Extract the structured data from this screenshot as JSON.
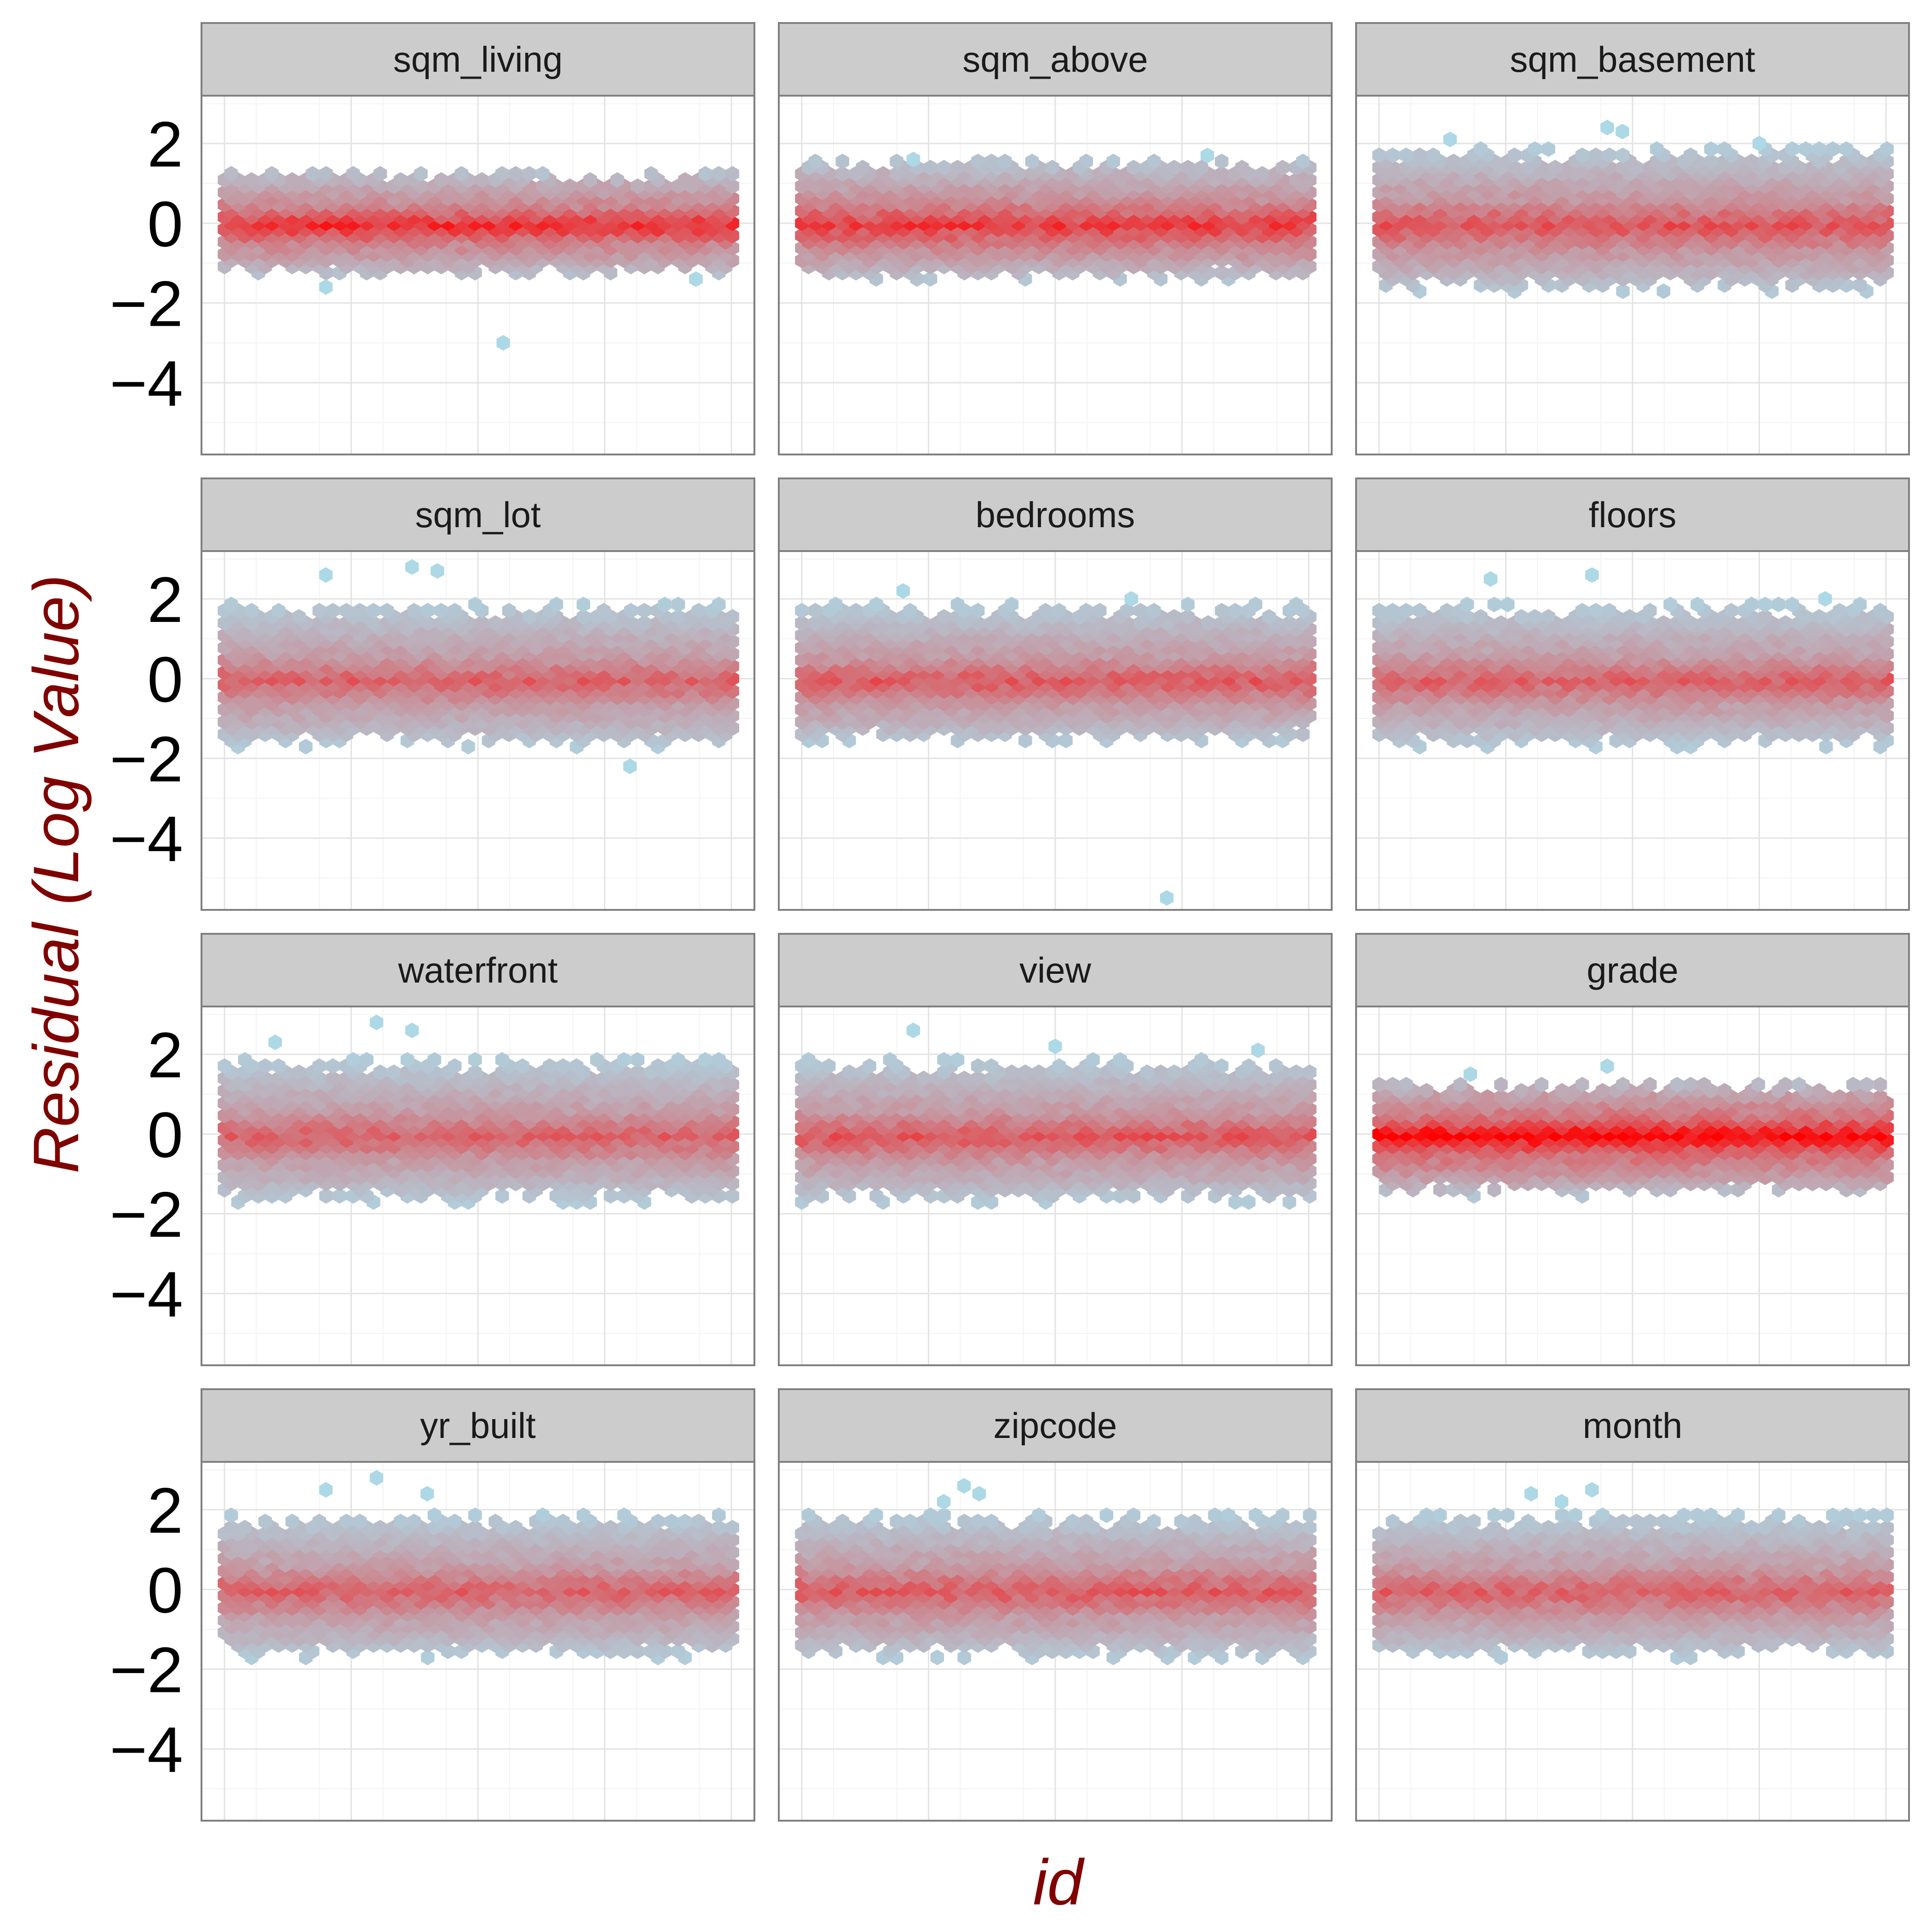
{
  "chart_data": {
    "type": "hexbin",
    "xlabel": "id",
    "ylabel": "Residual (Log Value)",
    "ylim": [
      -5.8,
      3.2
    ],
    "y_ticks": [
      2,
      0,
      -2,
      -4
    ],
    "y_tick_labels": [
      "2",
      "0",
      "−2",
      "−4"
    ],
    "x_tick_labels": [],
    "grid": true,
    "layout": "4 rows x 3 columns facets",
    "colors": {
      "low": "#add8e6",
      "high": "#ff0000",
      "axis_title": "#800000",
      "strip_bg": "#cccccc",
      "panel_border": "#7f7f7f",
      "grid_major": "#e3e3e3",
      "grid_minor": "#f3f3f3"
    },
    "panels": [
      {
        "label": "sqm_living",
        "upper": 1.3,
        "lower": -1.3,
        "core": 0.45,
        "peak": 0.78,
        "outliers": [
          [
            0.2,
            -1.6
          ],
          [
            0.55,
            -3.0
          ],
          [
            0.93,
            -1.4
          ]
        ]
      },
      {
        "label": "sqm_above",
        "upper": 1.6,
        "lower": -1.4,
        "core": 0.55,
        "peak": 0.72,
        "outliers": [
          [
            0.22,
            1.6
          ],
          [
            0.8,
            1.7
          ]
        ]
      },
      {
        "label": "sqm_basement",
        "upper": 1.9,
        "lower": -1.7,
        "core": 0.62,
        "peak": 0.62,
        "outliers": [
          [
            0.45,
            2.4
          ],
          [
            0.48,
            2.3
          ],
          [
            0.14,
            2.1
          ],
          [
            0.75,
            2.0
          ]
        ]
      },
      {
        "label": "sqm_lot",
        "upper": 1.9,
        "lower": -1.7,
        "core": 0.62,
        "peak": 0.55,
        "outliers": [
          [
            0.2,
            2.6
          ],
          [
            0.37,
            2.8
          ],
          [
            0.42,
            2.7
          ],
          [
            0.8,
            -2.2
          ]
        ]
      },
      {
        "label": "bedrooms",
        "upper": 1.9,
        "lower": -1.6,
        "core": 0.58,
        "peak": 0.58,
        "outliers": [
          [
            0.2,
            2.2
          ],
          [
            0.65,
            2.0
          ],
          [
            0.72,
            -5.5
          ]
        ]
      },
      {
        "label": "floors",
        "upper": 1.9,
        "lower": -1.7,
        "core": 0.6,
        "peak": 0.55,
        "outliers": [
          [
            0.22,
            2.5
          ],
          [
            0.42,
            2.6
          ],
          [
            0.88,
            2.0
          ]
        ]
      },
      {
        "label": "waterfront",
        "upper": 1.9,
        "lower": -1.7,
        "core": 0.62,
        "peak": 0.55,
        "outliers": [
          [
            0.1,
            2.3
          ],
          [
            0.3,
            2.8
          ],
          [
            0.37,
            2.6
          ]
        ]
      },
      {
        "label": "view",
        "upper": 1.9,
        "lower": -1.7,
        "core": 0.58,
        "peak": 0.6,
        "outliers": [
          [
            0.22,
            2.6
          ],
          [
            0.5,
            2.2
          ],
          [
            0.9,
            2.1
          ]
        ]
      },
      {
        "label": "grade",
        "upper": 1.3,
        "lower": -1.5,
        "core": 0.4,
        "peak": 1.0,
        "outliers": [
          [
            0.45,
            1.7
          ],
          [
            0.18,
            1.5
          ]
        ]
      },
      {
        "label": "yr_built",
        "upper": 1.9,
        "lower": -1.7,
        "core": 0.62,
        "peak": 0.55,
        "outliers": [
          [
            0.3,
            2.8
          ],
          [
            0.2,
            2.5
          ],
          [
            0.4,
            2.4
          ]
        ]
      },
      {
        "label": "zipcode",
        "upper": 1.9,
        "lower": -1.7,
        "core": 0.62,
        "peak": 0.58,
        "outliers": [
          [
            0.32,
            2.6
          ],
          [
            0.35,
            2.4
          ],
          [
            0.28,
            2.2
          ]
        ]
      },
      {
        "label": "month",
        "upper": 1.9,
        "lower": -1.7,
        "core": 0.62,
        "peak": 0.55,
        "outliers": [
          [
            0.3,
            2.4
          ],
          [
            0.36,
            2.2
          ],
          [
            0.42,
            2.5
          ]
        ]
      }
    ]
  }
}
